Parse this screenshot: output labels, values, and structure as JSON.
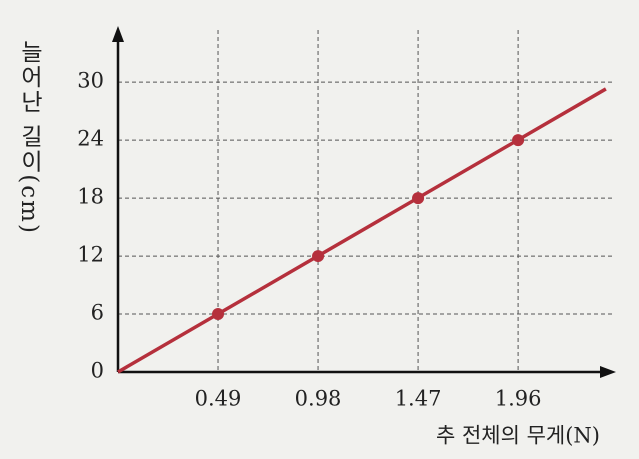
{
  "chart_data": {
    "type": "line",
    "x_label": "추 전체의 무게(N)",
    "y_label": "늘어난 길이(cm)",
    "x": [
      0.49,
      0.98,
      1.47,
      1.96
    ],
    "values": [
      6,
      12,
      18,
      24
    ],
    "line": {
      "x": [
        0,
        2.39
      ],
      "values": [
        0,
        29.3
      ]
    },
    "color": "#b5303c",
    "xlim": [
      0,
      2.42
    ],
    "ylim": [
      0,
      35.4
    ],
    "xticks": [
      0.49,
      0.98,
      1.47,
      1.96
    ],
    "yticks": [
      0,
      6,
      12,
      18,
      24,
      30
    ],
    "grid": true
  }
}
